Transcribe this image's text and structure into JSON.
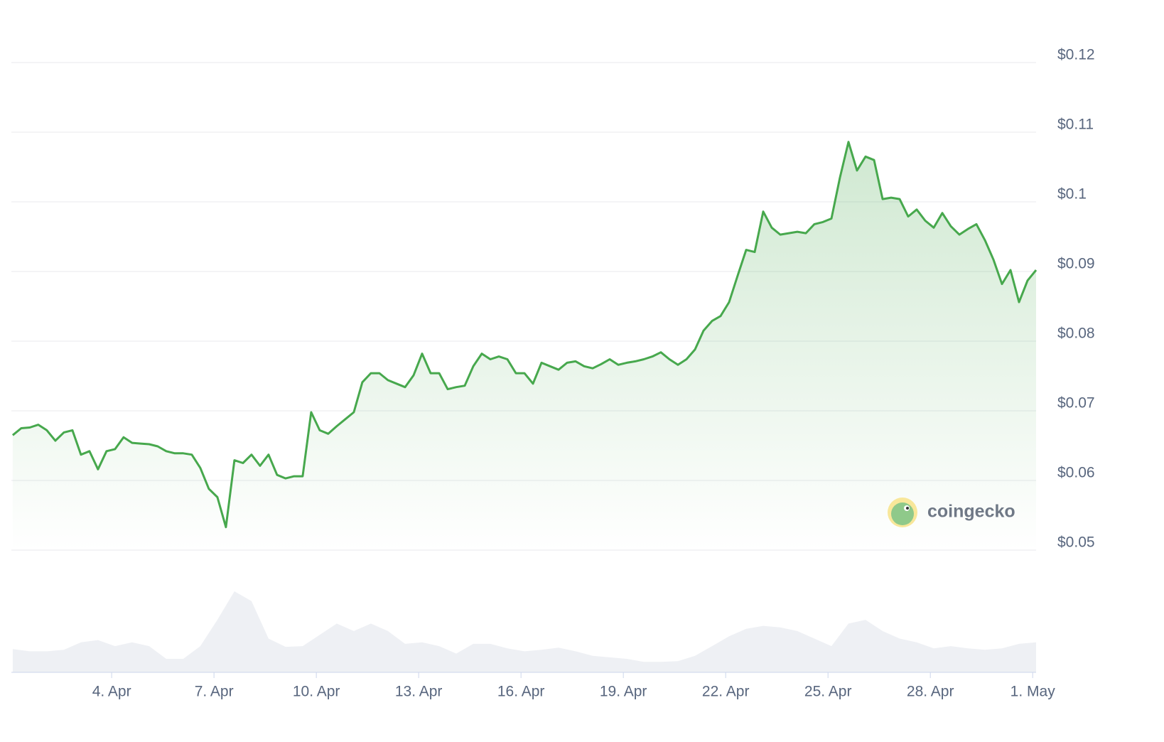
{
  "chart_data": {
    "type": "line",
    "watermark": "coingecko",
    "xlim": [
      1.06,
      31.1
    ],
    "xticks": [
      {
        "value": 4,
        "label": "4. Apr"
      },
      {
        "value": 7,
        "label": "7. Apr"
      },
      {
        "value": 10,
        "label": "10. Apr"
      },
      {
        "value": 13,
        "label": "13. Apr"
      },
      {
        "value": 16,
        "label": "16. Apr"
      },
      {
        "value": 19,
        "label": "19. Apr"
      },
      {
        "value": 22,
        "label": "22. Apr"
      },
      {
        "value": 25,
        "label": "25. Apr"
      },
      {
        "value": 28,
        "label": "28. Apr"
      },
      {
        "value": 31,
        "label": "1. May"
      }
    ],
    "ylim": [
      0.05,
      0.12
    ],
    "yticks": [
      {
        "value": 0.05,
        "label": "$0.05"
      },
      {
        "value": 0.06,
        "label": "$0.06"
      },
      {
        "value": 0.07,
        "label": "$0.07"
      },
      {
        "value": 0.08,
        "label": "$0.08"
      },
      {
        "value": 0.09,
        "label": "$0.09"
      },
      {
        "value": 0.1,
        "label": "$0.1"
      },
      {
        "value": 0.11,
        "label": "$0.11"
      },
      {
        "value": 0.12,
        "label": "$0.12"
      }
    ],
    "grid": true,
    "series": [
      {
        "color": "#47a84d",
        "x": [
          1.1,
          1.35,
          1.6,
          1.85,
          2.1,
          2.35,
          2.6,
          2.85,
          3.1,
          3.35,
          3.6,
          3.85,
          4.1,
          4.35,
          4.6,
          4.85,
          5.1,
          5.35,
          5.6,
          5.85,
          6.1,
          6.35,
          6.6,
          6.85,
          7.1,
          7.35,
          7.6,
          7.85,
          8.1,
          8.35,
          8.6,
          8.85,
          9.1,
          9.35,
          9.6,
          9.85,
          10.1,
          10.35,
          10.6,
          10.85,
          11.1,
          11.35,
          11.6,
          11.85,
          12.1,
          12.35,
          12.6,
          12.85,
          13.1,
          13.35,
          13.6,
          13.85,
          14.1,
          14.35,
          14.6,
          14.85,
          15.1,
          15.35,
          15.6,
          15.85,
          16.1,
          16.35,
          16.6,
          16.85,
          17.1,
          17.35,
          17.6,
          17.85,
          18.1,
          18.35,
          18.6,
          18.85,
          19.1,
          19.35,
          19.6,
          19.85,
          20.1,
          20.35,
          20.6,
          20.85,
          21.1,
          21.35,
          21.6,
          21.85,
          22.1,
          22.35,
          22.6,
          22.85,
          23.1,
          23.35,
          23.6,
          23.85,
          24.1,
          24.35,
          24.6,
          24.85,
          25.1,
          25.35,
          25.6,
          25.85,
          26.1,
          26.35,
          26.6,
          26.85,
          27.1,
          27.35,
          27.6,
          27.85,
          28.1,
          28.35,
          28.6,
          28.85,
          29.1,
          29.35,
          29.6,
          29.85,
          30.1,
          30.35,
          30.6,
          30.85,
          31.1
        ],
        "values": [
          0.0665,
          0.0675,
          0.0676,
          0.068,
          0.0672,
          0.0657,
          0.0669,
          0.0672,
          0.0637,
          0.0642,
          0.0616,
          0.0642,
          0.0645,
          0.0662,
          0.0654,
          0.0653,
          0.0652,
          0.0649,
          0.0642,
          0.0639,
          0.0639,
          0.0637,
          0.0618,
          0.0588,
          0.0576,
          0.0533,
          0.0629,
          0.0625,
          0.0637,
          0.0621,
          0.0637,
          0.0608,
          0.0603,
          0.0606,
          0.0606,
          0.0698,
          0.0672,
          0.0667,
          0.0678,
          0.0688,
          0.0698,
          0.0741,
          0.0754,
          0.0754,
          0.0744,
          0.0739,
          0.0734,
          0.0751,
          0.0782,
          0.0754,
          0.0754,
          0.0731,
          0.0734,
          0.0736,
          0.0764,
          0.0782,
          0.0774,
          0.0778,
          0.0774,
          0.0754,
          0.0754,
          0.0739,
          0.0769,
          0.0764,
          0.0759,
          0.0769,
          0.0771,
          0.0764,
          0.0761,
          0.0767,
          0.0774,
          0.0766,
          0.0769,
          0.0771,
          0.0774,
          0.0778,
          0.0784,
          0.0774,
          0.0766,
          0.0774,
          0.0788,
          0.0815,
          0.0829,
          0.0836,
          0.0856,
          0.0894,
          0.0931,
          0.0928,
          0.0986,
          0.0963,
          0.0953,
          0.0955,
          0.0957,
          0.0955,
          0.0968,
          0.0971,
          0.0976,
          0.1035,
          0.1086,
          0.1045,
          0.1065,
          0.106,
          0.1004,
          0.1006,
          0.1004,
          0.0979,
          0.0989,
          0.0973,
          0.0963,
          0.0984,
          0.0965,
          0.0953,
          0.0961,
          0.0968,
          0.0945,
          0.0917,
          0.0882,
          0.0902,
          0.0856,
          0.0887,
          0.0902
        ]
      }
    ],
    "volume": {
      "color": "#eef0f4",
      "x": [
        1.1,
        1.6,
        2.1,
        2.6,
        3.1,
        3.6,
        4.1,
        4.6,
        5.1,
        5.6,
        6.1,
        6.6,
        7.1,
        7.6,
        8.1,
        8.6,
        9.1,
        9.6,
        10.1,
        10.6,
        11.1,
        11.6,
        12.1,
        12.6,
        13.1,
        13.6,
        14.1,
        14.6,
        15.1,
        15.6,
        16.1,
        16.6,
        17.1,
        17.6,
        18.1,
        18.6,
        19.1,
        19.6,
        20.1,
        20.6,
        21.1,
        21.6,
        22.1,
        22.6,
        23.1,
        23.6,
        24.1,
        24.6,
        25.1,
        25.6,
        26.1,
        26.6,
        27.1,
        27.6,
        28.1,
        28.6,
        29.1,
        29.6,
        30.1,
        30.6,
        31.1
      ],
      "values": [
        31,
        28,
        28,
        30,
        40,
        43,
        35,
        40,
        35,
        18,
        18,
        35,
        70,
        108,
        95,
        45,
        34,
        35,
        50,
        65,
        55,
        65,
        55,
        38,
        40,
        35,
        25,
        38,
        38,
        32,
        28,
        30,
        33,
        28,
        22,
        20,
        18,
        14,
        14,
        15,
        22,
        35,
        48,
        58,
        62,
        60,
        55,
        45,
        35,
        65,
        70,
        55,
        45,
        40,
        32,
        35,
        32,
        30,
        32,
        38,
        40
      ]
    }
  }
}
